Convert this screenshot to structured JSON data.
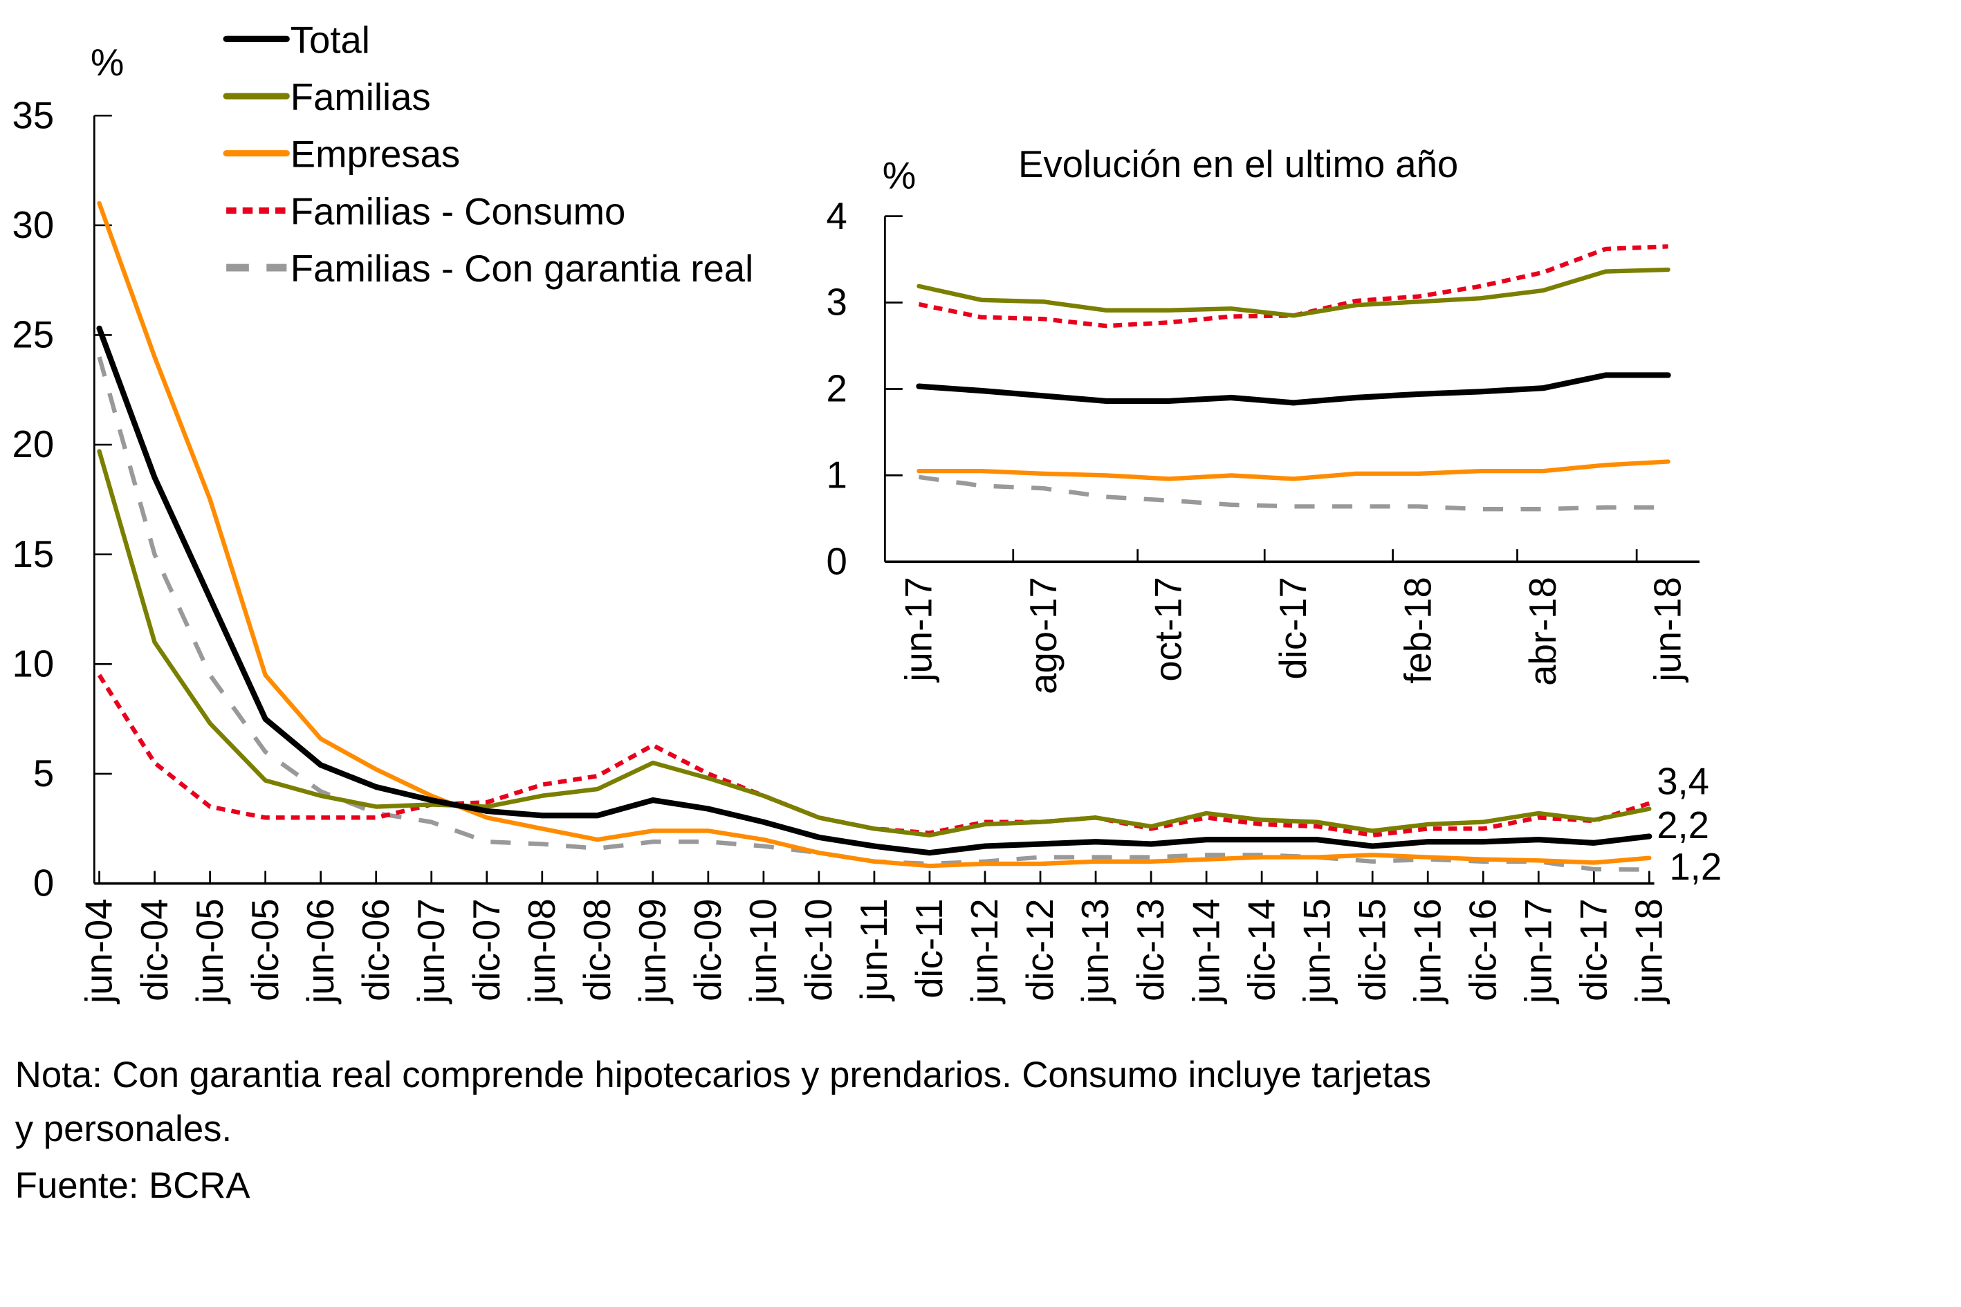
{
  "chart_data": [
    {
      "id": "main",
      "type": "line",
      "title": "",
      "unit_label": "%",
      "xlabel": "",
      "ylabel": "%",
      "ylim": [
        0,
        35
      ],
      "yticks": [
        0,
        5,
        10,
        15,
        20,
        25,
        30,
        35
      ],
      "grid": false,
      "legend_position": "top-left",
      "categories": [
        "jun-04",
        "dic-04",
        "jun-05",
        "dic-05",
        "jun-06",
        "dic-06",
        "jun-07",
        "dic-07",
        "jun-08",
        "dic-08",
        "jun-09",
        "dic-09",
        "jun-10",
        "dic-10",
        "jun-11",
        "dic-11",
        "jun-12",
        "dic-12",
        "jun-13",
        "dic-13",
        "jun-14",
        "dic-14",
        "jun-15",
        "dic-15",
        "jun-16",
        "dic-16",
        "jun-17",
        "dic-17",
        "jun-18"
      ],
      "series": [
        {
          "name": "Total",
          "color": "#000000",
          "style": "solid",
          "values": [
            25.3,
            18.5,
            13.0,
            7.5,
            5.4,
            4.4,
            3.8,
            3.3,
            3.1,
            3.1,
            3.8,
            3.4,
            2.8,
            2.1,
            1.7,
            1.4,
            1.7,
            1.8,
            1.9,
            1.8,
            2.0,
            2.0,
            2.0,
            1.7,
            1.9,
            1.9,
            2.0,
            1.85,
            2.15
          ]
        },
        {
          "name": "Familias",
          "color": "#7A7F00",
          "style": "solid",
          "values": [
            19.7,
            11.0,
            7.3,
            4.7,
            4.0,
            3.5,
            3.6,
            3.5,
            4.0,
            4.3,
            5.5,
            4.8,
            4.0,
            3.0,
            2.5,
            2.2,
            2.7,
            2.8,
            3.0,
            2.6,
            3.2,
            2.9,
            2.8,
            2.4,
            2.7,
            2.8,
            3.2,
            2.9,
            3.4
          ]
        },
        {
          "name": "Empresas",
          "color": "#FF8C00",
          "style": "solid",
          "values": [
            31.0,
            24.0,
            17.5,
            9.5,
            6.6,
            5.2,
            4.0,
            3.0,
            2.5,
            2.0,
            2.4,
            2.4,
            2.0,
            1.4,
            1.0,
            0.8,
            0.9,
            0.9,
            1.0,
            1.0,
            1.1,
            1.2,
            1.2,
            1.3,
            1.2,
            1.1,
            1.05,
            0.95,
            1.16
          ]
        },
        {
          "name": "Familias - Consumo",
          "color": "#E8001C",
          "style": "short-dash",
          "values": [
            9.5,
            5.5,
            3.5,
            3.0,
            3.0,
            3.0,
            3.6,
            3.7,
            4.5,
            4.9,
            6.3,
            5.0,
            4.0,
            3.0,
            2.5,
            2.3,
            2.8,
            2.8,
            3.0,
            2.5,
            3.0,
            2.7,
            2.6,
            2.2,
            2.5,
            2.5,
            3.0,
            2.85,
            3.65
          ]
        },
        {
          "name": "Familias - Con garantia real",
          "color": "#999999",
          "style": "long-dash",
          "values": [
            24.0,
            15.0,
            9.5,
            6.0,
            4.2,
            3.2,
            2.8,
            1.9,
            1.8,
            1.6,
            1.9,
            1.9,
            1.7,
            1.4,
            1.0,
            0.9,
            1.0,
            1.2,
            1.2,
            1.2,
            1.3,
            1.3,
            1.2,
            1.0,
            1.1,
            1.0,
            1.0,
            0.65,
            0.63
          ]
        }
      ],
      "end_labels": [
        "3,4",
        "2,2",
        "1,2"
      ]
    },
    {
      "id": "inset",
      "type": "line",
      "title": "Evolución en el ultimo año",
      "unit_label": "%",
      "xlabel": "",
      "ylabel": "%",
      "ylim": [
        0,
        4
      ],
      "yticks": [
        0,
        1,
        2,
        3,
        4
      ],
      "grid": false,
      "categories": [
        "jun-17",
        "jul-17",
        "ago-17",
        "sep-17",
        "oct-17",
        "nov-17",
        "dic-17",
        "ene-18",
        "feb-18",
        "mar-18",
        "abr-18",
        "may-18",
        "jun-18"
      ],
      "xtick_labels": [
        "jun-17",
        "ago-17",
        "oct-17",
        "dic-17",
        "feb-18",
        "abr-18",
        "jun-18"
      ],
      "series": [
        {
          "name": "Total",
          "color": "#000000",
          "style": "solid",
          "values": [
            2.03,
            1.98,
            1.92,
            1.86,
            1.86,
            1.9,
            1.84,
            1.9,
            1.94,
            1.97,
            2.01,
            2.16,
            2.16
          ]
        },
        {
          "name": "Familias",
          "color": "#7A7F00",
          "style": "solid",
          "values": [
            3.19,
            3.03,
            3.01,
            2.91,
            2.91,
            2.93,
            2.85,
            2.97,
            3.01,
            3.05,
            3.14,
            3.36,
            3.38
          ]
        },
        {
          "name": "Empresas",
          "color": "#FF8C00",
          "style": "solid",
          "values": [
            1.05,
            1.05,
            1.02,
            1.0,
            0.96,
            1.0,
            0.96,
            1.02,
            1.02,
            1.05,
            1.05,
            1.12,
            1.16
          ]
        },
        {
          "name": "Familias - Consumo",
          "color": "#E8001C",
          "style": "short-dash",
          "values": [
            2.98,
            2.83,
            2.81,
            2.73,
            2.77,
            2.84,
            2.85,
            3.02,
            3.07,
            3.19,
            3.35,
            3.62,
            3.65
          ]
        },
        {
          "name": "Familias - Con garantia real",
          "color": "#999999",
          "style": "long-dash",
          "values": [
            0.98,
            0.88,
            0.85,
            0.75,
            0.71,
            0.66,
            0.64,
            0.64,
            0.64,
            0.61,
            0.61,
            0.63,
            0.63
          ]
        }
      ]
    }
  ],
  "legend": [
    {
      "label": "Total",
      "color": "#000000",
      "style": "solid"
    },
    {
      "label": "Familias",
      "color": "#7A7F00",
      "style": "solid"
    },
    {
      "label": "Empresas",
      "color": "#FF8C00",
      "style": "solid"
    },
    {
      "label": "Familias - Consumo",
      "color": "#E8001C",
      "style": "short-dash"
    },
    {
      "label": "Familias - Con garantia real",
      "color": "#999999",
      "style": "long-dash"
    }
  ],
  "notes": {
    "line1": "Nota: Con garantia real comprende hipotecarios y prendarios. Consumo incluye tarjetas",
    "line2": "y personales.",
    "source": "Fuente: BCRA"
  }
}
